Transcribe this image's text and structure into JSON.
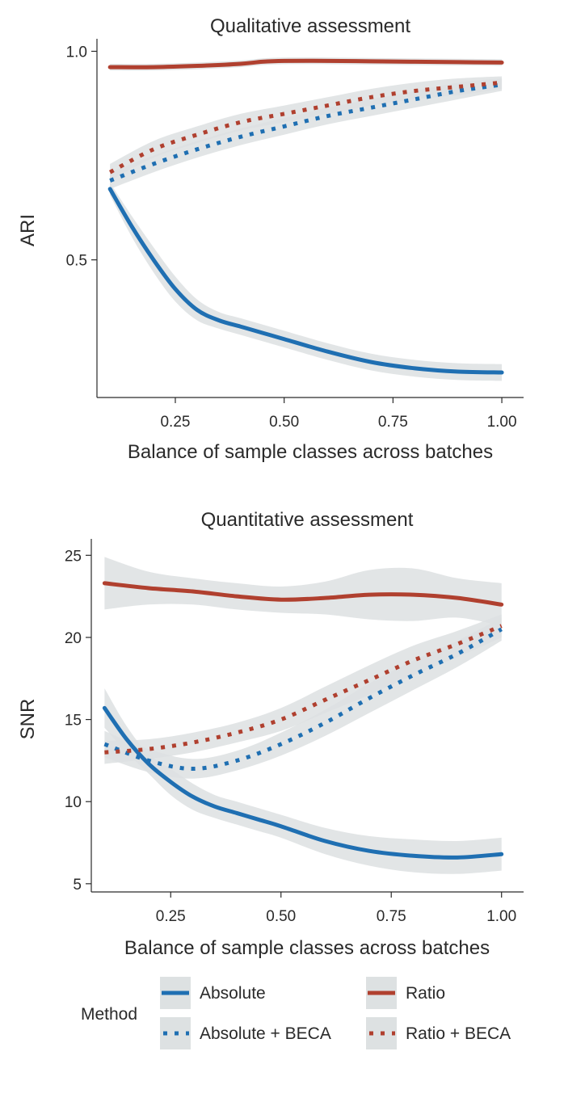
{
  "figure": {
    "legend": {
      "title": "Method",
      "entries": [
        {
          "label": "Absolute",
          "color": "#1f6fb2",
          "style": "solid"
        },
        {
          "label": "Ratio",
          "color": "#b0402f",
          "style": "solid"
        },
        {
          "label": "Absolute + BECA",
          "color": "#1f6fb2",
          "style": "dotted"
        },
        {
          "label": "Ratio + BECA",
          "color": "#b0402f",
          "style": "dotted"
        }
      ]
    }
  },
  "chart_data": [
    {
      "type": "line",
      "title": "Qualitative assessment",
      "xlabel": "Balance of sample classes across batches",
      "ylabel": "ARI",
      "xlim": [
        0.07,
        1.05
      ],
      "ylim": [
        0.17,
        1.03
      ],
      "xticks": [
        0.25,
        0.5,
        0.75,
        1.0
      ],
      "xtick_labels": [
        "0.25",
        "0.50",
        "0.75",
        "1.00"
      ],
      "yticks": [
        0.5,
        1.0
      ],
      "ytick_labels": [
        "0.5",
        "1.0"
      ],
      "grid": false,
      "confidence_band_color": "#dde1e2",
      "series": [
        {
          "name": "Absolute",
          "color": "#1f6fb2",
          "style": "solid",
          "x": [
            0.1,
            0.15,
            0.2,
            0.25,
            0.3,
            0.35,
            0.4,
            0.45,
            0.5,
            0.6,
            0.7,
            0.8,
            0.9,
            1.0
          ],
          "y": [
            0.67,
            0.58,
            0.5,
            0.43,
            0.38,
            0.355,
            0.34,
            0.325,
            0.31,
            0.28,
            0.255,
            0.24,
            0.232,
            0.23
          ],
          "band": [
            0.015,
            0.025,
            0.03,
            0.03,
            0.025,
            0.02,
            0.02,
            0.02,
            0.02,
            0.02,
            0.02,
            0.02,
            0.02,
            0.02
          ]
        },
        {
          "name": "Ratio",
          "color": "#b0402f",
          "style": "solid",
          "x": [
            0.1,
            0.2,
            0.3,
            0.4,
            0.45,
            0.5,
            0.6,
            0.7,
            0.8,
            0.9,
            1.0
          ],
          "y": [
            0.962,
            0.962,
            0.965,
            0.97,
            0.975,
            0.977,
            0.977,
            0.976,
            0.975,
            0.974,
            0.973
          ],
          "band": [
            0.008,
            0.008,
            0.008,
            0.008,
            0.008,
            0.008,
            0.008,
            0.008,
            0.008,
            0.008,
            0.008
          ]
        },
        {
          "name": "Absolute + BECA",
          "color": "#1f6fb2",
          "style": "dotted",
          "x": [
            0.1,
            0.2,
            0.3,
            0.4,
            0.5,
            0.6,
            0.7,
            0.8,
            0.9,
            1.0
          ],
          "y": [
            0.69,
            0.73,
            0.765,
            0.795,
            0.82,
            0.845,
            0.865,
            0.885,
            0.905,
            0.92
          ],
          "band": [
            0.02,
            0.02,
            0.02,
            0.02,
            0.02,
            0.02,
            0.02,
            0.02,
            0.02,
            0.015
          ]
        },
        {
          "name": "Ratio + BECA",
          "color": "#b0402f",
          "style": "dotted",
          "x": [
            0.1,
            0.2,
            0.3,
            0.4,
            0.5,
            0.6,
            0.7,
            0.8,
            0.9,
            1.0
          ],
          "y": [
            0.71,
            0.765,
            0.8,
            0.83,
            0.85,
            0.87,
            0.89,
            0.905,
            0.915,
            0.925
          ],
          "band": [
            0.02,
            0.02,
            0.02,
            0.02,
            0.02,
            0.02,
            0.02,
            0.02,
            0.02,
            0.015
          ]
        }
      ]
    },
    {
      "type": "line",
      "title": "Quantitative assessment",
      "xlabel": "Balance of sample classes across batches",
      "ylabel": "SNR",
      "xlim": [
        0.07,
        1.05
      ],
      "ylim": [
        4.5,
        26
      ],
      "xticks": [
        0.25,
        0.5,
        0.75,
        1.0
      ],
      "xtick_labels": [
        "0.25",
        "0.50",
        "0.75",
        "1.00"
      ],
      "yticks": [
        5,
        10,
        15,
        20,
        25
      ],
      "ytick_labels": [
        "5",
        "10",
        "15",
        "20",
        "25"
      ],
      "grid": false,
      "confidence_band_color": "#dde1e2",
      "series": [
        {
          "name": "Absolute",
          "color": "#1f6fb2",
          "style": "solid",
          "x": [
            0.1,
            0.15,
            0.2,
            0.25,
            0.3,
            0.35,
            0.4,
            0.45,
            0.5,
            0.6,
            0.7,
            0.8,
            0.9,
            1.0
          ],
          "y": [
            15.7,
            13.8,
            12.3,
            11.2,
            10.3,
            9.7,
            9.3,
            8.9,
            8.5,
            7.6,
            7.0,
            6.7,
            6.6,
            6.8
          ],
          "band": [
            1.2,
            0.8,
            0.6,
            0.8,
            0.8,
            0.7,
            0.7,
            0.7,
            0.7,
            0.8,
            0.9,
            1.0,
            1.0,
            1.0
          ]
        },
        {
          "name": "Ratio",
          "color": "#b0402f",
          "style": "solid",
          "x": [
            0.1,
            0.2,
            0.3,
            0.4,
            0.5,
            0.6,
            0.7,
            0.8,
            0.9,
            1.0
          ],
          "y": [
            23.3,
            23.0,
            22.8,
            22.5,
            22.3,
            22.4,
            22.6,
            22.6,
            22.4,
            22.0
          ],
          "band": [
            1.6,
            1.0,
            0.8,
            0.8,
            0.8,
            1.0,
            1.5,
            1.6,
            1.2,
            1.3
          ]
        },
        {
          "name": "Absolute + BECA",
          "color": "#1f6fb2",
          "style": "dotted",
          "x": [
            0.1,
            0.2,
            0.3,
            0.4,
            0.5,
            0.6,
            0.7,
            0.8,
            0.9,
            1.0
          ],
          "y": [
            13.5,
            12.5,
            12.0,
            12.5,
            13.5,
            14.8,
            16.3,
            17.7,
            19.0,
            20.5
          ],
          "band": [
            0.8,
            0.7,
            0.6,
            0.6,
            0.7,
            0.8,
            0.9,
            0.9,
            0.8,
            0.7
          ]
        },
        {
          "name": "Ratio + BECA",
          "color": "#b0402f",
          "style": "dotted",
          "x": [
            0.1,
            0.2,
            0.3,
            0.4,
            0.5,
            0.6,
            0.7,
            0.8,
            0.9,
            1.0
          ],
          "y": [
            13.0,
            13.2,
            13.6,
            14.2,
            15.0,
            16.2,
            17.4,
            18.6,
            19.6,
            20.7
          ],
          "band": [
            0.7,
            0.6,
            0.6,
            0.6,
            0.7,
            0.8,
            0.9,
            0.9,
            0.8,
            0.7
          ]
        }
      ]
    }
  ]
}
